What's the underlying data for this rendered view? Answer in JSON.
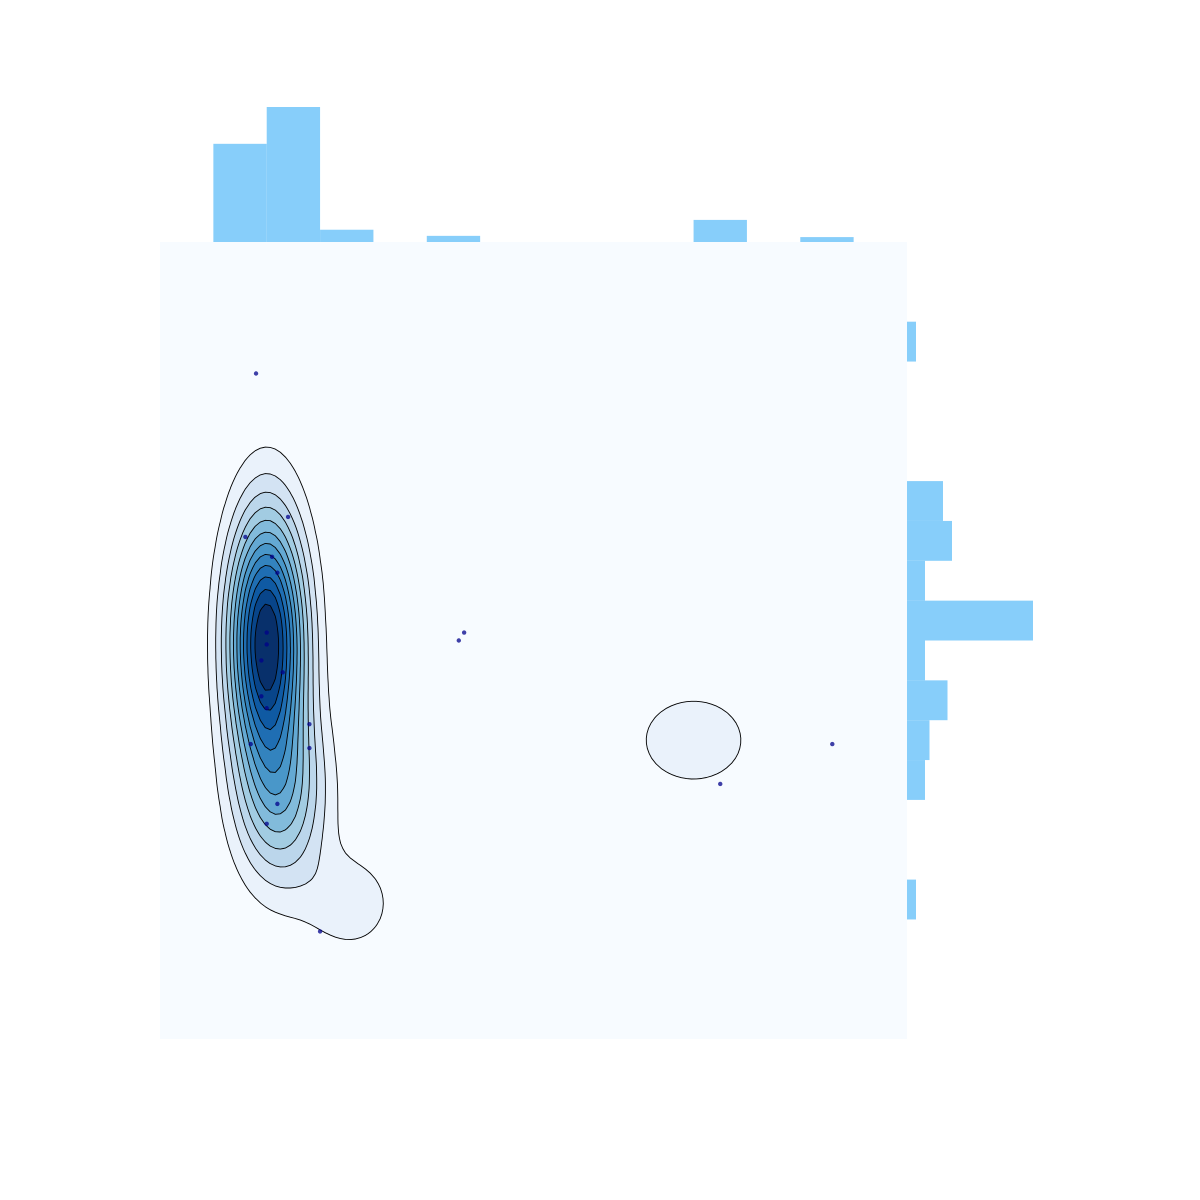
{
  "chart_data": {
    "type": "contour",
    "title": "",
    "xlabel": "",
    "ylabel": "",
    "axes_visible": false,
    "xlim": [
      0,
      14
    ],
    "ylim": [
      0,
      20
    ],
    "colors": {
      "background": "#f7fbff",
      "histogram": "#87cefa",
      "contour_line": "#000000",
      "contour_fill_low": "#eaf2fb",
      "contour_fill_high": "#08306b",
      "point": "#00008b"
    },
    "points": [
      {
        "x": 1.8,
        "y": 16.7
      },
      {
        "x": 2.4,
        "y": 13.1
      },
      {
        "x": 1.6,
        "y": 12.6
      },
      {
        "x": 2.1,
        "y": 12.1
      },
      {
        "x": 2.2,
        "y": 11.7
      },
      {
        "x": 2.0,
        "y": 10.2
      },
      {
        "x": 2.0,
        "y": 9.9
      },
      {
        "x": 1.9,
        "y": 9.5
      },
      {
        "x": 2.3,
        "y": 9.2
      },
      {
        "x": 1.9,
        "y": 8.6
      },
      {
        "x": 2.0,
        "y": 8.3
      },
      {
        "x": 2.8,
        "y": 7.9
      },
      {
        "x": 1.7,
        "y": 7.4
      },
      {
        "x": 2.8,
        "y": 7.3
      },
      {
        "x": 2.2,
        "y": 5.9
      },
      {
        "x": 2.0,
        "y": 5.4
      },
      {
        "x": 3.0,
        "y": 2.7
      },
      {
        "x": 5.7,
        "y": 10.2
      },
      {
        "x": 5.6,
        "y": 10.0
      },
      {
        "x": 10.5,
        "y": 6.4
      },
      {
        "x": 12.6,
        "y": 7.4
      }
    ],
    "kde_components": [
      {
        "x": 2.0,
        "y": 10.0,
        "sx": 0.5,
        "sy": 2.2,
        "w": 1.0
      },
      {
        "x": 2.3,
        "y": 6.0,
        "sx": 0.6,
        "sy": 1.6,
        "w": 0.35
      },
      {
        "x": 3.6,
        "y": 3.4,
        "sx": 0.6,
        "sy": 0.9,
        "w": 0.14
      },
      {
        "x": 1.9,
        "y": 17.4,
        "sx": 0.45,
        "sy": 0.55,
        "w": 0.06
      },
      {
        "x": 6.0,
        "y": 10.0,
        "sx": 0.45,
        "sy": 0.55,
        "w": 0.06
      },
      {
        "x": 10.0,
        "y": 7.5,
        "sx": 1.0,
        "sy": 1.1,
        "w": 0.13
      }
    ],
    "contour_levels": 12,
    "x_hist": {
      "bin_edges": [
        0,
        1,
        2,
        3,
        4,
        5,
        6,
        7,
        8,
        9,
        10,
        11,
        12,
        13,
        14
      ],
      "counts": [
        0,
        8,
        11,
        1,
        0,
        0.5,
        0,
        0,
        0,
        0,
        1.8,
        0,
        0.4,
        0
      ]
    },
    "y_hist": {
      "bin_edges": [
        0,
        1,
        2,
        3,
        4,
        5,
        6,
        7,
        8,
        9,
        10,
        11,
        12,
        13,
        14,
        15,
        16,
        17,
        18,
        19,
        20
      ],
      "counts": [
        0,
        0,
        0,
        1,
        0,
        0,
        2,
        2.5,
        4.5,
        2,
        14,
        2,
        5,
        4,
        0,
        0,
        0,
        1,
        0,
        0
      ]
    }
  }
}
